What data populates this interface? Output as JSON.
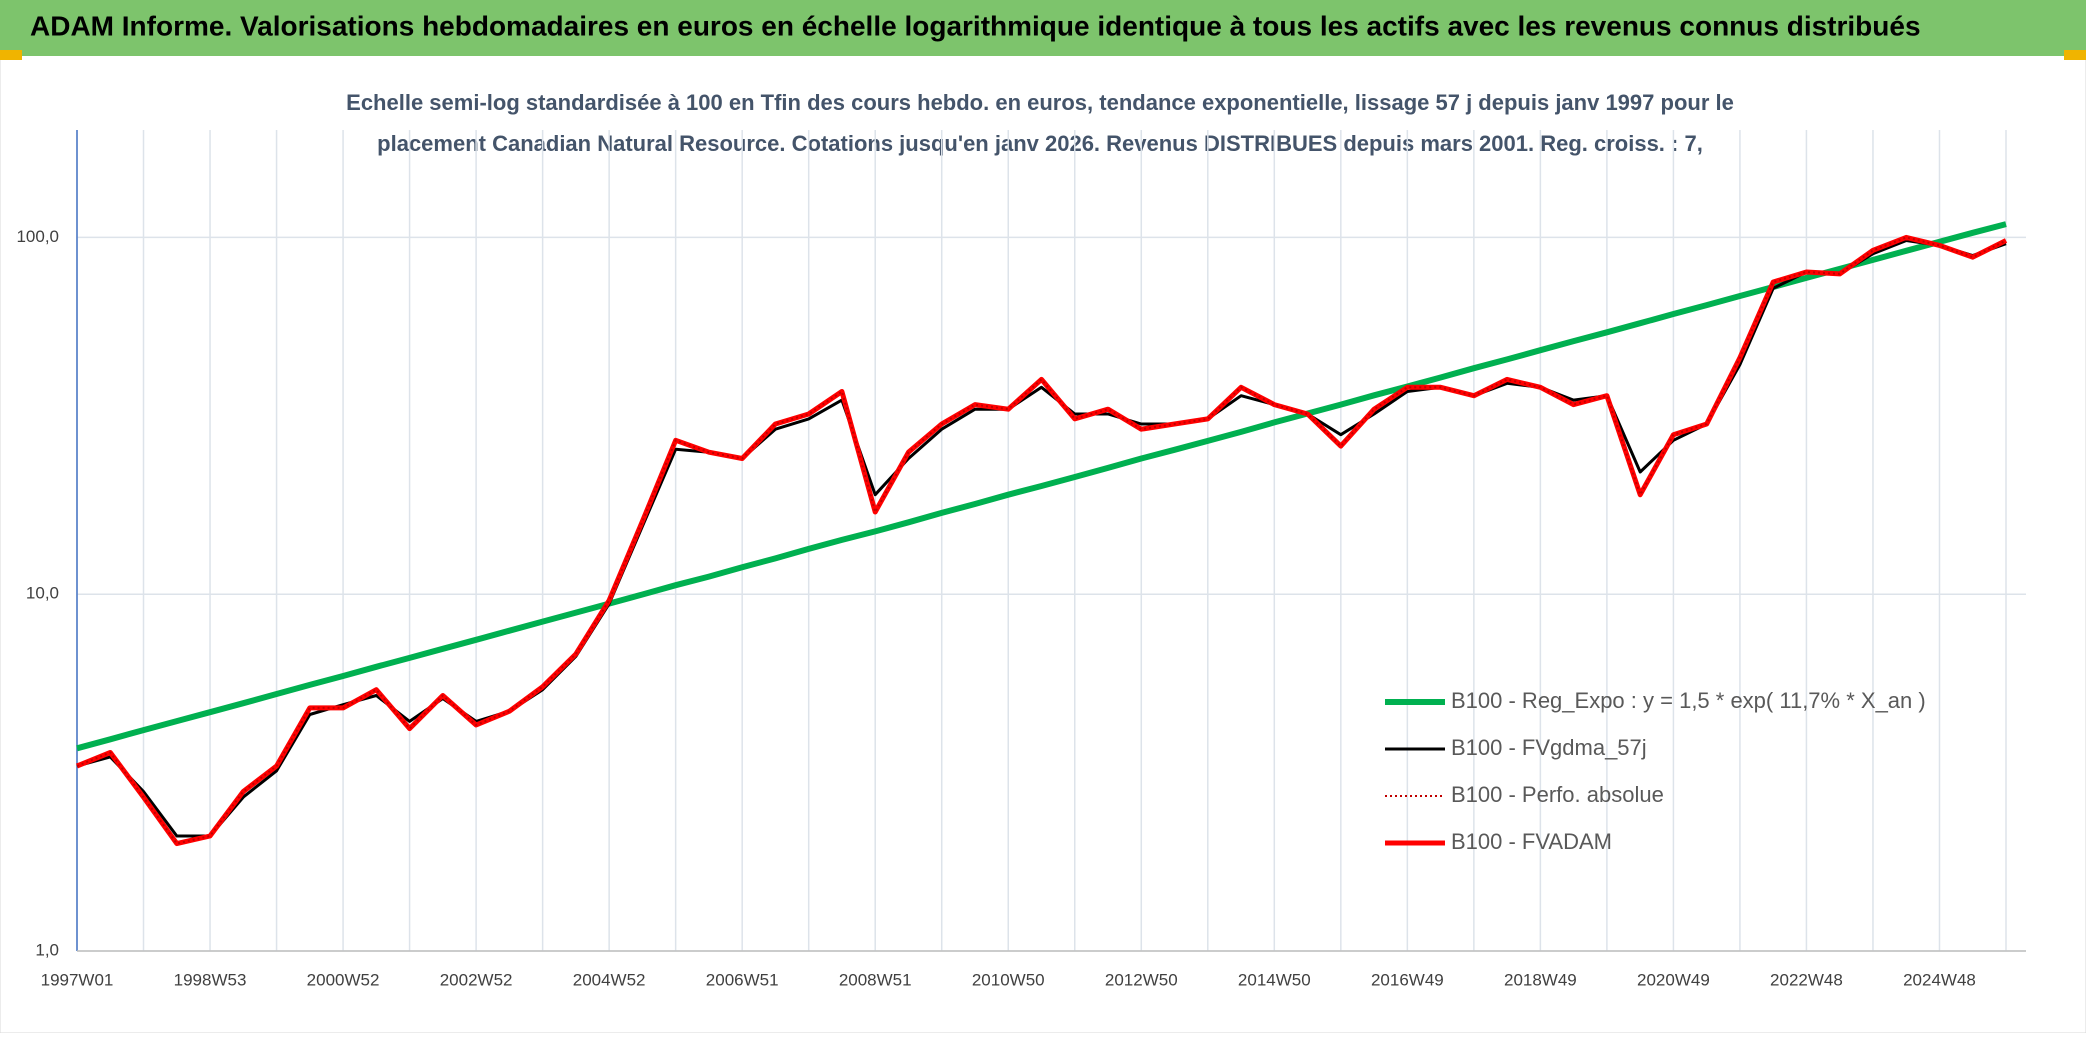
{
  "chart_data": {
    "type": "line",
    "title": "ADAM Informe. Valorisations hebdomadaires en euros en échelle logarithmique identique à tous les actifs avec les revenus connus distribués",
    "subtitle": [
      "Echelle semi-log standardisée à 100 en Tfin des cours hebdo. en euros, tendance exponentielle, lissage 57 j depuis janv 1997 pour le",
      "placement Canadian Natural Resource. Cotations jusqu'en janv 2026. Revenus DISTRIBUES depuis mars 2001. Reg. croiss. : 7,"
    ],
    "categories": [
      "1997W01",
      null,
      null,
      null,
      "1998W53",
      null,
      null,
      null,
      "2000W52",
      null,
      null,
      null,
      "2002W52",
      null,
      null,
      null,
      "2004W52",
      null,
      null,
      null,
      "2006W51",
      null,
      null,
      null,
      "2008W51",
      null,
      null,
      null,
      "2010W50",
      null,
      null,
      null,
      "2012W50",
      null,
      null,
      null,
      "2014W50",
      null,
      null,
      null,
      "2016W49",
      null,
      null,
      null,
      "2018W49",
      null,
      null,
      null,
      "2020W49",
      null,
      null,
      null,
      "2022W48",
      null,
      null,
      null,
      "2024W48",
      null,
      null
    ],
    "log_scale": true,
    "ylim": [
      1,
      200
    ],
    "yticks": [
      {
        "value": 1,
        "label": "1,0"
      },
      {
        "value": 10,
        "label": "10,0"
      },
      {
        "value": 100,
        "label": "100,0"
      }
    ],
    "grid": true,
    "series": [
      {
        "name": "B100 - Reg_Expo : y = 1,5 * exp( 11,7% *  X_an )",
        "color": "#00b050",
        "style": "solid",
        "width": 6,
        "values": [
          3.7,
          3.92,
          4.16,
          4.41,
          4.67,
          4.95,
          5.25,
          5.57,
          5.9,
          6.26,
          6.63,
          7.03,
          7.45,
          7.9,
          8.38,
          8.88,
          9.41,
          9.98,
          10.6,
          11.2,
          11.9,
          12.6,
          13.4,
          14.2,
          15,
          15.9,
          16.9,
          17.9,
          19,
          20.1,
          21.3,
          22.6,
          24,
          25.4,
          26.9,
          28.5,
          30.3,
          32.1,
          34,
          36.1,
          38.2,
          40.5,
          43,
          45.5,
          48.3,
          51.2,
          54.2,
          57.5,
          61,
          64.6,
          68.5,
          72.6,
          77,
          81.6,
          86.5,
          91.7,
          97.2,
          103,
          109
        ]
      },
      {
        "name": "B100 - FVgdma_57j",
        "color": "#000000",
        "style": "solid",
        "width": 3,
        "values": [
          3.3,
          3.5,
          2.8,
          2.1,
          2.1,
          2.7,
          3.2,
          4.6,
          4.9,
          5.2,
          4.4,
          5.1,
          4.4,
          4.7,
          5.4,
          6.7,
          9.4,
          15.5,
          25.5,
          25,
          24,
          29,
          31,
          35,
          19,
          24,
          29,
          33,
          33,
          38,
          32,
          32,
          30,
          30,
          31,
          36,
          34,
          32,
          28,
          32,
          37,
          38,
          36,
          39,
          38,
          35,
          36,
          22,
          27,
          30,
          44,
          72,
          80,
          79,
          90,
          98,
          95,
          89,
          96
        ]
      },
      {
        "name": "B100 - Perfo. absolue",
        "color": "#c00000",
        "style": "dotted",
        "width": 2,
        "values": [
          3.3,
          3.6,
          2.7,
          2.0,
          2.1,
          2.8,
          3.3,
          4.8,
          4.8,
          5.4,
          4.2,
          5.2,
          4.3,
          4.7,
          5.5,
          6.8,
          9.6,
          16,
          27,
          25,
          24,
          30,
          32,
          37,
          17,
          25,
          30,
          34,
          33,
          40,
          31,
          33,
          29,
          30,
          31,
          38,
          34,
          32,
          26,
          33,
          38,
          38,
          36,
          40,
          38,
          34,
          36,
          19,
          28,
          30,
          46,
          75,
          80,
          79,
          92,
          100,
          95,
          88,
          98
        ]
      },
      {
        "name": "B100 - FVADAM",
        "color": "#ff0000",
        "style": "solid",
        "width": 5,
        "values": [
          3.3,
          3.6,
          2.7,
          2.0,
          2.1,
          2.8,
          3.3,
          4.8,
          4.8,
          5.4,
          4.2,
          5.2,
          4.3,
          4.7,
          5.5,
          6.8,
          9.6,
          16,
          27,
          25,
          24,
          30,
          32,
          37,
          17,
          25,
          30,
          34,
          33,
          40,
          31,
          33,
          29,
          30,
          31,
          38,
          34,
          32,
          26,
          33,
          38,
          38,
          36,
          40,
          38,
          34,
          36,
          19,
          28,
          30,
          46,
          75,
          80,
          79,
          92,
          100,
          95,
          88,
          98
        ]
      }
    ]
  }
}
